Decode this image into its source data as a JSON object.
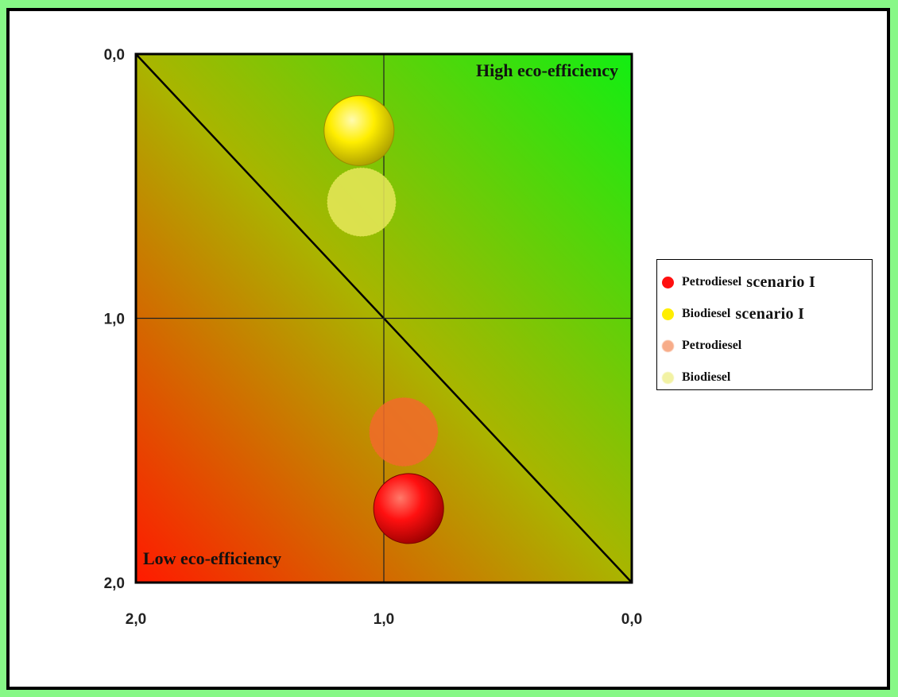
{
  "chart_data": {
    "type": "scatter",
    "subtype": "bubble",
    "axes": {
      "x": {
        "range": [
          2.0,
          0.0
        ],
        "reversed": true,
        "ticks": [
          "2,0",
          "1,0",
          "0,0"
        ],
        "tick_values": [
          2.0,
          1.0,
          0.0
        ]
      },
      "y": {
        "range": [
          0.0,
          2.0
        ],
        "reversed": true,
        "ticks": [
          "0,0",
          "1,0",
          "2,0"
        ],
        "tick_values": [
          0.0,
          1.0,
          2.0
        ]
      }
    },
    "corner_labels": {
      "top_right": "High eco-efficiency",
      "bottom_left": "Low eco-efficiency"
    },
    "reference_lines": {
      "diagonal": true,
      "crosshair_at": [
        1.0,
        1.0
      ]
    },
    "background_gradient": {
      "low": "#ff1a00",
      "high": "#00ee22"
    },
    "series": [
      {
        "name": "Petrodiesel",
        "name_suffix": "scenario I",
        "x": 0.9,
        "y": 1.72,
        "color": "#ff1010",
        "style": "solid"
      },
      {
        "name": "Biodiesel",
        "name_suffix": "scenario I",
        "x": 1.1,
        "y": 0.29,
        "color": "#ffee00",
        "style": "solid"
      },
      {
        "name": "Petrodiesel",
        "name_suffix": "",
        "x": 0.92,
        "y": 1.43,
        "color": "#f26a2a",
        "style": "faded"
      },
      {
        "name": "Biodiesel",
        "name_suffix": "",
        "x": 1.09,
        "y": 0.56,
        "color": "#e8e85a",
        "style": "faded"
      }
    ]
  }
}
